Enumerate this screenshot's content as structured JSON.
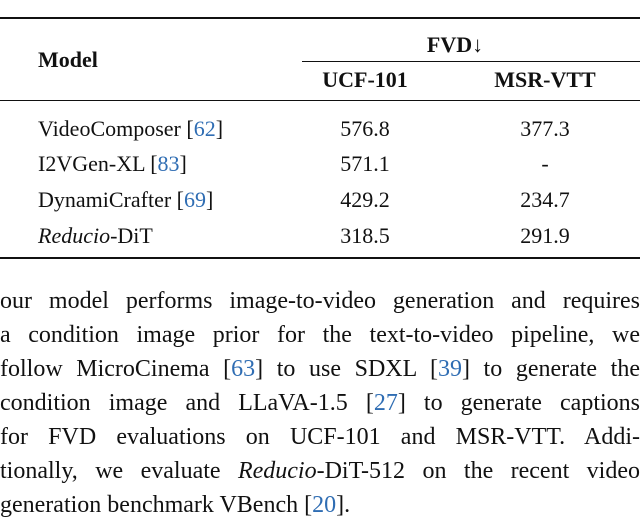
{
  "table": {
    "header": {
      "model": "Model",
      "group": "FVD↓",
      "columns": [
        "UCF-101",
        "MSR-VTT"
      ]
    },
    "rows": [
      {
        "model": [
          "VideoComposer [",
          "62",
          "]"
        ],
        "values": [
          "576.8",
          "377.3"
        ]
      },
      {
        "model": [
          "I2VGen-XL [",
          "83",
          "]"
        ],
        "values": [
          "571.1",
          "-"
        ]
      },
      {
        "model": [
          "DynamiCrafter [",
          "69",
          "]"
        ],
        "values": [
          "429.2",
          "234.7"
        ]
      },
      {
        "model": [
          "Reducio",
          "-DiT"
        ],
        "values": [
          "318.5",
          "291.9"
        ]
      }
    ]
  },
  "paragraph": {
    "lines": [
      [
        "our model performs image-to-video generation and requires"
      ],
      [
        "a condition image prior for the text-to-video pipeline, we"
      ],
      [
        "follow MicroCinema [",
        "63",
        "] to use SDXL [",
        "39",
        "] to generate the"
      ],
      [
        "condition image and LLaVA-1.5 [",
        "27",
        "] to generate captions"
      ],
      [
        "for FVD evaluations on UCF-101 and MSR-VTT. Addi-"
      ],
      [
        "tionally, we evaluate ",
        "Reducio",
        "-DiT-512 on the recent video"
      ],
      [
        "generation benchmark VBench [",
        "20",
        "]."
      ]
    ]
  }
}
